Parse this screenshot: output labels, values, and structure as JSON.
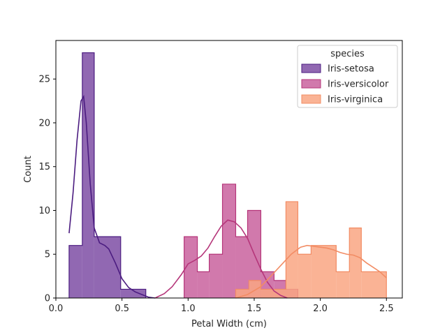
{
  "chart_data": {
    "type": "histogram",
    "xlabel": "Petal Width (cm)",
    "ylabel": "Count",
    "xlim": [
      0.0,
      2.62
    ],
    "ylim": [
      0,
      29.4
    ],
    "xticks": [
      0.0,
      0.5,
      1.0,
      1.5,
      2.0,
      2.5
    ],
    "xtick_labels": [
      "0.0",
      "0.5",
      "1.0",
      "1.5",
      "2.0",
      "2.5"
    ],
    "yticks": [
      0,
      5,
      10,
      15,
      20,
      25
    ],
    "ytick_labels": [
      "0",
      "5",
      "10",
      "15",
      "20",
      "25"
    ],
    "grid": false,
    "legend": {
      "title": "species",
      "placement": "top-right"
    },
    "series": [
      {
        "name": "Iris-setosa",
        "color": "#4b1c80",
        "fill": "#7e4ea5",
        "bins": [
          {
            "x0": 0.1,
            "x1": 0.2,
            "count": 6
          },
          {
            "x0": 0.2,
            "x1": 0.29,
            "count": 28
          },
          {
            "x0": 0.29,
            "x1": 0.49,
            "count": 7
          },
          {
            "x0": 0.49,
            "x1": 0.68,
            "count": 1
          }
        ],
        "kde": [
          [
            0.1,
            7.4
          ],
          [
            0.13,
            12
          ],
          [
            0.16,
            18
          ],
          [
            0.19,
            22.5
          ],
          [
            0.21,
            23
          ],
          [
            0.23,
            20
          ],
          [
            0.26,
            13
          ],
          [
            0.29,
            8
          ],
          [
            0.33,
            6.3
          ],
          [
            0.37,
            6
          ],
          [
            0.4,
            5.6
          ],
          [
            0.45,
            4
          ],
          [
            0.5,
            2.2
          ],
          [
            0.55,
            1.2
          ],
          [
            0.6,
            0.7
          ],
          [
            0.65,
            0.4
          ],
          [
            0.7,
            0.1
          ],
          [
            0.75,
            0
          ]
        ]
      },
      {
        "name": "Iris-versicolor",
        "color": "#b5367a",
        "fill": "#c9619d",
        "bins": [
          {
            "x0": 0.97,
            "x1": 1.07,
            "count": 7
          },
          {
            "x0": 1.07,
            "x1": 1.16,
            "count": 3
          },
          {
            "x0": 1.16,
            "x1": 1.26,
            "count": 5
          },
          {
            "x0": 1.26,
            "x1": 1.36,
            "count": 13
          },
          {
            "x0": 1.36,
            "x1": 1.45,
            "count": 7
          },
          {
            "x0": 1.45,
            "x1": 1.55,
            "count": 10
          },
          {
            "x0": 1.55,
            "x1": 1.65,
            "count": 3
          },
          {
            "x0": 1.65,
            "x1": 1.74,
            "count": 2
          },
          {
            "x0": 1.74,
            "x1": 1.83,
            "count": 1
          }
        ],
        "kde": [
          [
            0.75,
            0
          ],
          [
            0.82,
            0.5
          ],
          [
            0.88,
            1.3
          ],
          [
            0.95,
            2.7
          ],
          [
            1.0,
            3.9
          ],
          [
            1.05,
            4.3
          ],
          [
            1.1,
            4.8
          ],
          [
            1.15,
            5.7
          ],
          [
            1.2,
            7
          ],
          [
            1.25,
            8.2
          ],
          [
            1.3,
            8.9
          ],
          [
            1.35,
            8.7
          ],
          [
            1.4,
            8
          ],
          [
            1.45,
            6.8
          ],
          [
            1.5,
            5
          ],
          [
            1.55,
            3.3
          ],
          [
            1.6,
            1.8
          ],
          [
            1.65,
            0.8
          ],
          [
            1.7,
            0.3
          ],
          [
            1.75,
            0
          ]
        ]
      },
      {
        "name": "Iris-virginica",
        "color": "#f28c64",
        "fill": "#f9a683",
        "bins": [
          {
            "x0": 1.36,
            "x1": 1.46,
            "count": 1
          },
          {
            "x0": 1.46,
            "x1": 1.55,
            "count": 2
          },
          {
            "x0": 1.55,
            "x1": 1.74,
            "count": 1
          },
          {
            "x0": 1.74,
            "x1": 1.83,
            "count": 11
          },
          {
            "x0": 1.83,
            "x1": 1.93,
            "count": 5
          },
          {
            "x0": 1.93,
            "x1": 2.12,
            "count": 6
          },
          {
            "x0": 2.12,
            "x1": 2.22,
            "count": 3
          },
          {
            "x0": 2.22,
            "x1": 2.31,
            "count": 8
          },
          {
            "x0": 2.31,
            "x1": 2.5,
            "count": 3
          }
        ],
        "kde": [
          [
            1.36,
            0
          ],
          [
            1.45,
            0.4
          ],
          [
            1.55,
            1.3
          ],
          [
            1.62,
            2.4
          ],
          [
            1.7,
            3.7
          ],
          [
            1.78,
            5
          ],
          [
            1.85,
            5.8
          ],
          [
            1.9,
            6
          ],
          [
            1.95,
            5.9
          ],
          [
            2.0,
            5.8
          ],
          [
            2.05,
            5.7
          ],
          [
            2.1,
            5.5
          ],
          [
            2.15,
            5.2
          ],
          [
            2.2,
            5
          ],
          [
            2.25,
            4.9
          ],
          [
            2.3,
            4.6
          ],
          [
            2.35,
            4
          ],
          [
            2.4,
            3.5
          ],
          [
            2.45,
            3
          ],
          [
            2.5,
            2.3
          ]
        ]
      }
    ]
  }
}
